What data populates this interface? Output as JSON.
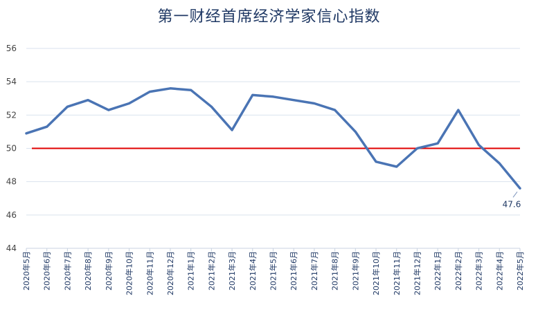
{
  "chart_data": {
    "type": "line",
    "title": "第一财经首席经济学家信心指数",
    "xlabel": "",
    "ylabel": "",
    "ylim": [
      44,
      56
    ],
    "yticks": [
      44,
      46,
      48,
      50,
      52,
      54,
      56
    ],
    "grid": true,
    "reference_line": {
      "value": 50,
      "color": "#e00000"
    },
    "categories": [
      "2020年5月",
      "2020年6月",
      "2020年7月",
      "2020年8月",
      "2020年9月",
      "2020年10月",
      "2020年11月",
      "2020年12月",
      "2021年1月",
      "2021年2月",
      "2021年3月",
      "2021年4月",
      "2021年5月",
      "2021年6月",
      "2021年7月",
      "2021年8月",
      "2021年9月",
      "2021年10月",
      "2021年11月",
      "2021年12月",
      "2022年1月",
      "2022年2月",
      "2022年3月",
      "2022年4月",
      "2022年5月"
    ],
    "series": [
      {
        "color": "#4a74b4",
        "values": [
          50.9,
          51.3,
          52.5,
          52.9,
          52.3,
          52.7,
          53.4,
          53.6,
          53.5,
          52.5,
          51.1,
          53.2,
          53.1,
          52.9,
          52.7,
          52.3,
          51.0,
          49.2,
          48.9,
          50.0,
          50.3,
          52.3,
          50.2,
          49.1,
          47.6
        ]
      }
    ],
    "data_labels": [
      {
        "index": 24,
        "text": "47.6"
      }
    ]
  }
}
